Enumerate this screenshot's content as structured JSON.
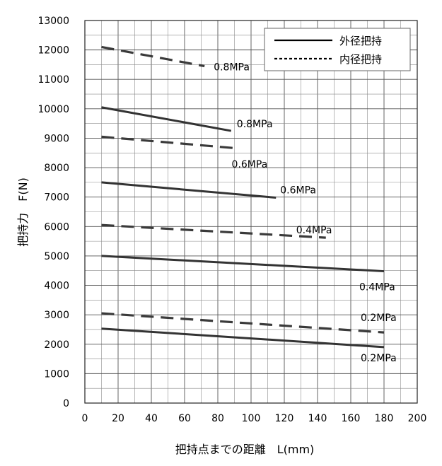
{
  "chart_data": {
    "type": "line",
    "title": "",
    "xlabel": "把持点までの距離　L(mm)",
    "ylabel": "把持力　F(N)",
    "xlim": [
      0,
      200
    ],
    "ylim": [
      0,
      13000
    ],
    "x_ticks": [
      "0",
      "20",
      "40",
      "60",
      "80",
      "100",
      "120",
      "140",
      "160",
      "180",
      "200"
    ],
    "y_ticks": [
      "0",
      "1000",
      "2000",
      "3000",
      "4000",
      "5000",
      "6000",
      "7000",
      "8000",
      "9000",
      "10000",
      "11000",
      "12000",
      "13000"
    ],
    "grid": true,
    "legend_position": "top-right",
    "legend": [
      {
        "label": "外径把持",
        "style": "solid"
      },
      {
        "label": "内径把持",
        "style": "dashed"
      }
    ],
    "series": [
      {
        "group": "外径把持",
        "style": "solid",
        "label": "0.8MPa",
        "x": [
          10,
          88
        ],
        "y": [
          10050,
          9250
        ]
      },
      {
        "group": "外径把持",
        "style": "solid",
        "label": "0.6MPa",
        "x": [
          10,
          115
        ],
        "y": [
          7500,
          6980
        ]
      },
      {
        "group": "外径把持",
        "style": "solid",
        "label": "0.4MPa",
        "x": [
          10,
          180
        ],
        "y": [
          5000,
          4480
        ]
      },
      {
        "group": "外径把持",
        "style": "solid",
        "label": "0.2MPa",
        "x": [
          10,
          180
        ],
        "y": [
          2530,
          1900
        ]
      },
      {
        "group": "内径把持",
        "style": "dashed",
        "label": "0.8MPa",
        "x": [
          10,
          72
        ],
        "y": [
          12100,
          11450
        ]
      },
      {
        "group": "内径把持",
        "style": "dashed",
        "label": "0.6MPa",
        "x": [
          10,
          93
        ],
        "y": [
          9050,
          8650
        ]
      },
      {
        "group": "内径把持",
        "style": "dashed",
        "label": "0.4MPa",
        "x": [
          10,
          145
        ],
        "y": [
          6050,
          5620
        ]
      },
      {
        "group": "内径把持",
        "style": "dashed",
        "label": "0.2MPa",
        "x": [
          10,
          180
        ],
        "y": [
          3050,
          2400
        ]
      }
    ]
  }
}
